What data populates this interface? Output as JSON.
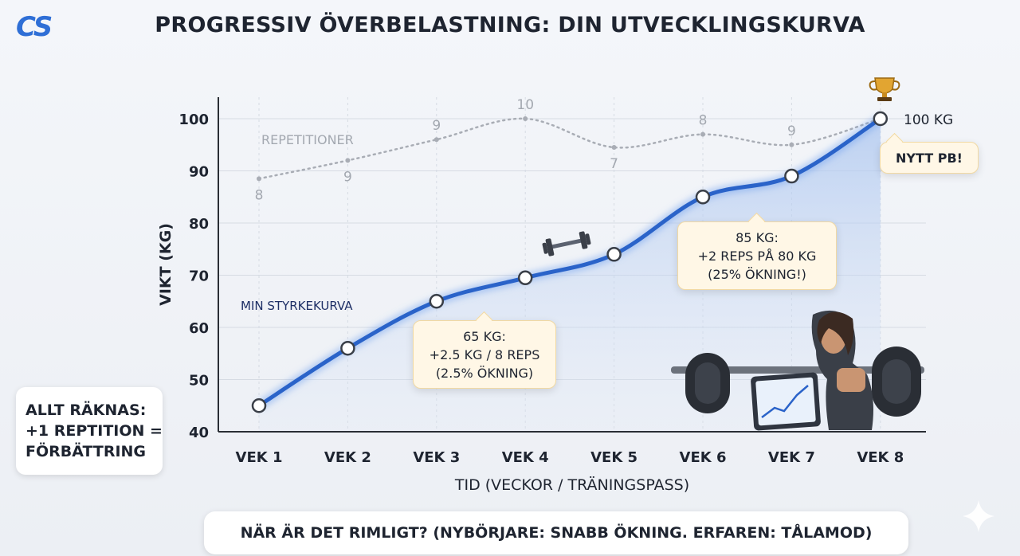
{
  "logo": "CS",
  "title": "PROGRESSIV ÖVERBELASTNING: DIN UTVECKLINGSKURVA",
  "chart_data": {
    "type": "line",
    "title": "PROGRESSIV ÖVERBELASTNING: DIN UTVECKLINGSKURVA",
    "xlabel": "TID (VECKOR / TRÄNINGSPASS)",
    "ylabel": "VIKT (KG)",
    "categories": [
      "VEK 1",
      "VEK 2",
      "VEK 3",
      "VEK 4",
      "VEK 5",
      "VEK 6",
      "VEK 7",
      "VEK 8"
    ],
    "ylim": [
      40,
      100
    ],
    "yticks": [
      40,
      50,
      60,
      70,
      80,
      90,
      100
    ],
    "grid": true,
    "series": [
      {
        "name": "MIN STYRKEKURVA",
        "values": [
          45,
          56,
          65,
          69.5,
          74,
          85,
          89,
          100
        ],
        "color": "#2a63c9",
        "style": "solid"
      },
      {
        "name": "REPETITIONER",
        "reps": [
          8,
          9,
          9,
          10,
          7,
          8,
          9,
          10
        ],
        "labels": [
          "8",
          "9",
          "9",
          "10",
          "7",
          "8",
          "9",
          ""
        ],
        "values": [
          88.5,
          92,
          96,
          100,
          94.5,
          97,
          95,
          100
        ],
        "color": "#a9adb5",
        "style": "dotted"
      }
    ],
    "end_label": "100 KG",
    "annotations": {
      "week3": [
        "65 KG:",
        "+2.5 KG / 8 REPS",
        "(2.5% ÖKNING)"
      ],
      "week6": [
        "85 KG:",
        "+2 REPS PÅ 80 KG",
        "(25% ÖKNING!)"
      ],
      "week8": "NYTT PB!"
    }
  },
  "side_note": [
    "ALLT RÄKNAS:",
    "+1 REPTITION =",
    "FÖRBÄTTRING"
  ],
  "bottom_note": "NÄR ÄR DET RIMLIGT? (NYBÖRJARE: SNABB ÖKNING. ERFAREN: TÅLAMOD)",
  "icons": [
    "trophy-icon",
    "dumbbell-icon",
    "barbell-icon",
    "sparkle-icon"
  ],
  "colors": {
    "accent": "#2a63c9",
    "logo": "#2f6fd6",
    "callout_bg": "#fff7e6"
  }
}
